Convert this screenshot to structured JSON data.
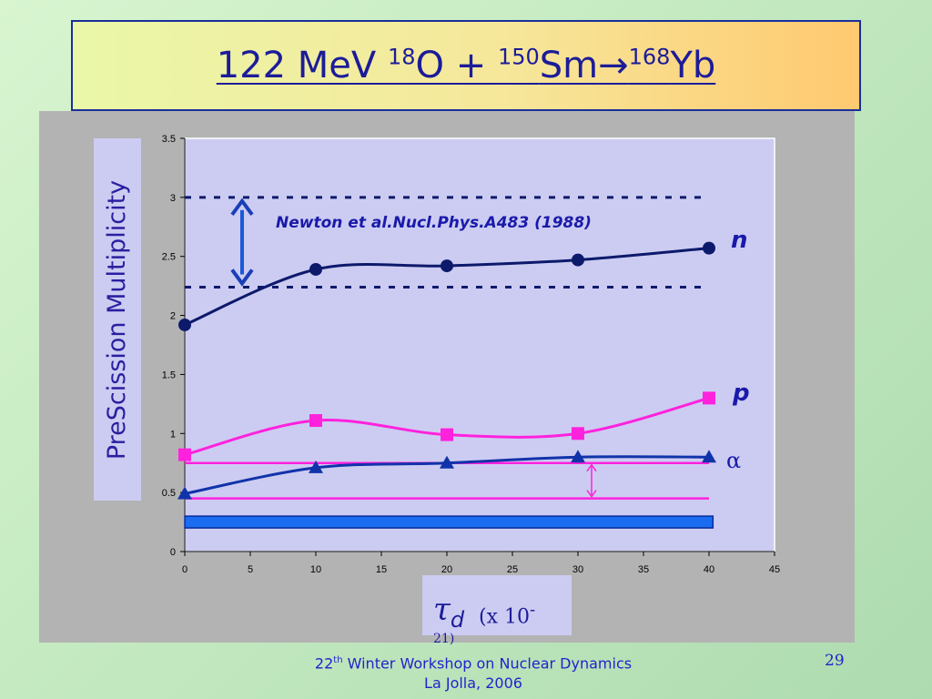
{
  "title": {
    "energy": "122 MeV ",
    "projectile_mass": "18",
    "projectile": "O + ",
    "target_mass": "150",
    "target": "Sm",
    "arrow": "→",
    "compound_mass": "168",
    "compound": "Yb"
  },
  "y_axis_title": "PreScission Multiplicity",
  "x_axis_title": {
    "symbol": "τ",
    "subscript": "d",
    "unit": "(x 10",
    "unit_dash": "-",
    "unit_exponent": "21)"
  },
  "footer": {
    "ordinal_number": "22",
    "ordinal_suffix": "th",
    "workshop": " Winter Workshop on Nuclear Dynamics",
    "location": "La Jolla, 2006"
  },
  "page_number": "29",
  "chart_data": {
    "type": "line",
    "xlim": [
      0,
      45
    ],
    "ylim": [
      0,
      3.5
    ],
    "x_ticks": [
      0,
      5,
      10,
      15,
      20,
      25,
      30,
      35,
      40,
      45
    ],
    "y_ticks": [
      0,
      0.5,
      1,
      1.5,
      2,
      2.5,
      3,
      3.5
    ],
    "x_tick_labels": [
      "0",
      "5",
      "10",
      "15",
      "20",
      "25",
      "30",
      "35",
      "40",
      "45"
    ],
    "y_tick_labels": [
      "0",
      "0.5",
      "1",
      "1.5",
      "2",
      "2.5",
      "3",
      "3.5"
    ],
    "grid": false,
    "series": [
      {
        "name": "n",
        "marker": "circle",
        "color": "#0d1a6b",
        "x": [
          0,
          10,
          20,
          30,
          40
        ],
        "y": [
          1.92,
          2.39,
          2.42,
          2.47,
          2.57
        ]
      },
      {
        "name": "p",
        "marker": "square",
        "color": "#ff22dd",
        "x": [
          0,
          10,
          20,
          30,
          40
        ],
        "y": [
          0.82,
          1.11,
          0.99,
          1.0,
          1.3
        ]
      },
      {
        "name": "α",
        "marker": "triangle",
        "color": "#1133aa",
        "x": [
          0,
          10,
          20,
          30,
          40
        ],
        "y": [
          0.49,
          0.71,
          0.75,
          0.8,
          0.8
        ]
      }
    ],
    "reference_bands": [
      {
        "label": "Newton et al.Nucl.Phys.A483 (1988)",
        "y_low": 2.24,
        "y_high": 3.0,
        "style": "dotted",
        "color": "#0d1a6b"
      },
      {
        "label": "",
        "y_low": 0.45,
        "y_high": 0.75,
        "style": "solid",
        "color": "#ff22dd"
      },
      {
        "label": "",
        "y_low": 0.2,
        "y_high": 0.3,
        "style": "filled",
        "color": "#1a6cf0"
      }
    ]
  }
}
